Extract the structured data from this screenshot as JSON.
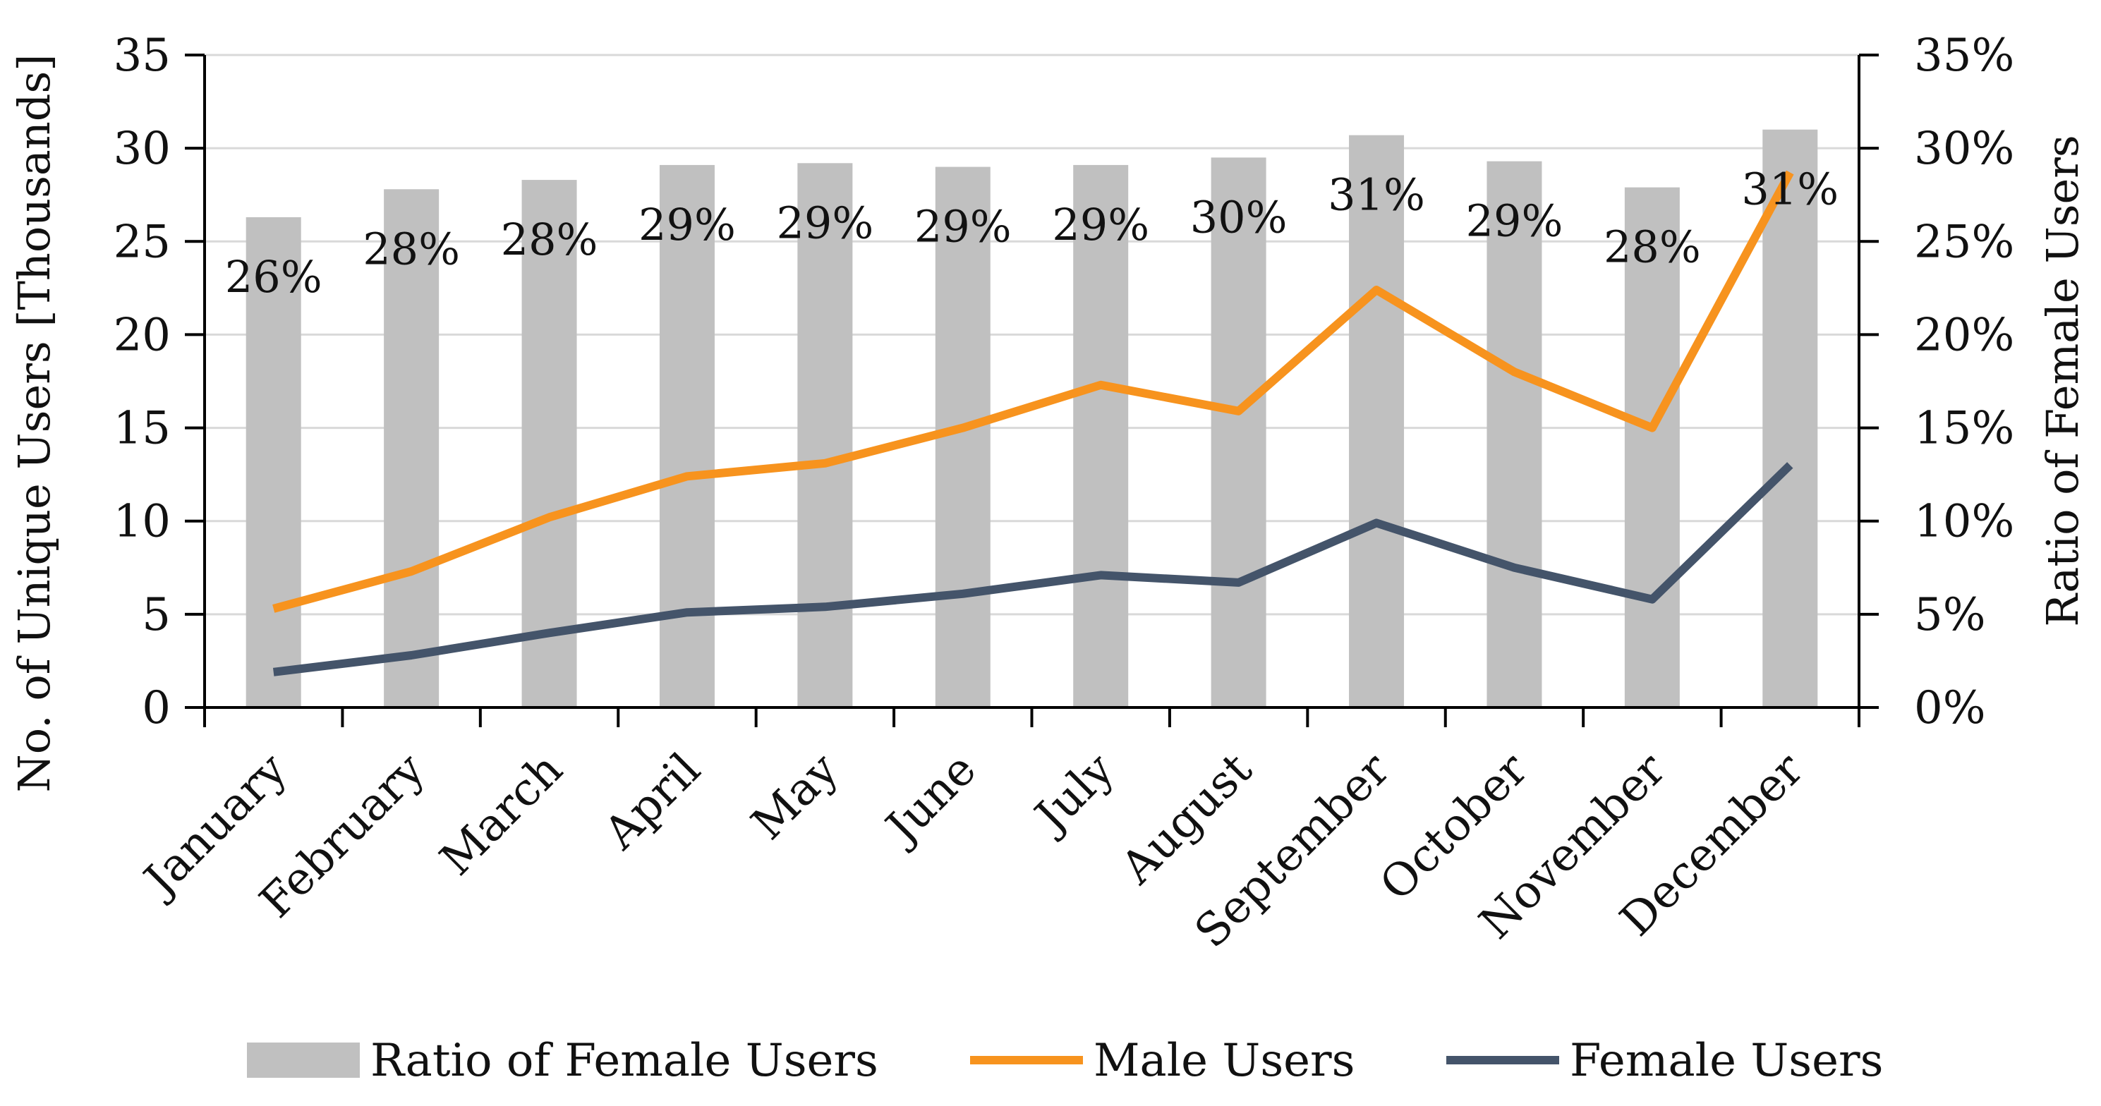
{
  "chart_data": {
    "type": "bar+line",
    "categories": [
      "January",
      "February",
      "March",
      "April",
      "May",
      "June",
      "July",
      "August",
      "September",
      "October",
      "November",
      "December"
    ],
    "bar_series": {
      "name": "Ratio of Female Users",
      "axis": "right",
      "values": [
        26.3,
        27.8,
        28.3,
        29.1,
        29.2,
        29.0,
        29.1,
        29.5,
        30.7,
        29.3,
        27.9,
        31.0
      ],
      "labels": [
        "26%",
        "28%",
        "28%",
        "29%",
        "29%",
        "29%",
        "29%",
        "30%",
        "31%",
        "29%",
        "28%",
        "31%"
      ],
      "color": "#c0c0c0"
    },
    "series": [
      {
        "name": "Male Users",
        "axis": "left",
        "values": [
          5.3,
          7.3,
          10.2,
          12.4,
          13.1,
          15.0,
          17.3,
          15.9,
          22.4,
          18.0,
          15.0,
          28.7
        ],
        "color": "#f7931e"
      },
      {
        "name": "Female Users",
        "axis": "left",
        "values": [
          1.9,
          2.8,
          4.0,
          5.1,
          5.4,
          6.1,
          7.1,
          6.7,
          9.9,
          7.5,
          5.8,
          13.0
        ],
        "color": "#44546a"
      }
    ],
    "title": "",
    "xlabel": "",
    "ylabel": "No. of Unique Users [Thousands]",
    "ylabel_right": "Ratio of Female Users",
    "ylim": [
      0,
      35
    ],
    "ylim_right": [
      0,
      35
    ],
    "yticks": [
      "0",
      "5",
      "10",
      "15",
      "20",
      "25",
      "30",
      "35"
    ],
    "yticks_right": [
      "0%",
      "5%",
      "10%",
      "15%",
      "20%",
      "25%",
      "30%",
      "35%"
    ],
    "grid": true,
    "legend": {
      "position": "bottom",
      "items": [
        "Ratio of Female Users",
        "Male Users",
        "Female Users"
      ]
    }
  }
}
